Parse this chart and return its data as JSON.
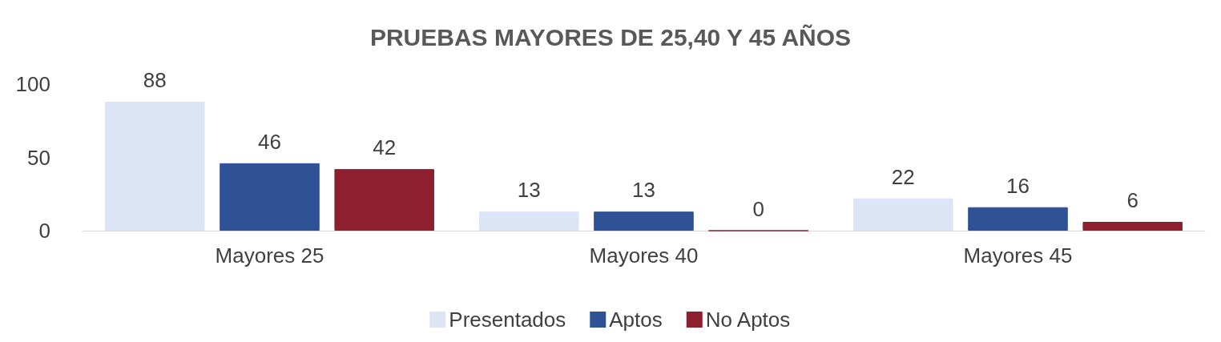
{
  "chart_data": {
    "type": "bar",
    "title": "PRUEBAS MAYORES DE 25,40 Y 45 AÑOS",
    "categories": [
      "Mayores 25",
      "Mayores 40",
      "Mayores 45"
    ],
    "series": [
      {
        "name": "Presentados",
        "color": "#dce5f6",
        "values": [
          88,
          13,
          22
        ]
      },
      {
        "name": "Aptos",
        "color": "#2f5196",
        "values": [
          46,
          13,
          16
        ]
      },
      {
        "name": "No Aptos",
        "color": "#8e1f2f",
        "values": [
          42,
          0,
          6
        ]
      }
    ],
    "ylim": [
      0,
      100
    ],
    "yticks": [
      0,
      50,
      100
    ],
    "grid": false,
    "legend": "bottom",
    "data_labels": true
  }
}
